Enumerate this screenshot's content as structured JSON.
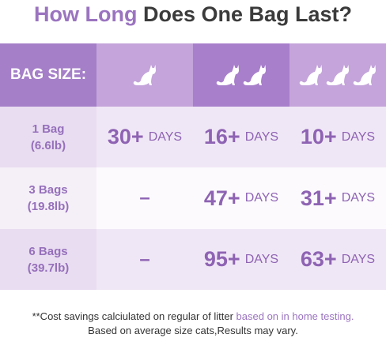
{
  "header": {
    "title_accent": "How Long",
    "title_rest": "Does One Bag Last?"
  },
  "table": {
    "header_label": "BAG SIZE:",
    "rows": [
      {
        "label": [
          "1 Bag",
          "(6.6lb)"
        ],
        "cells": [
          {
            "number": "30+",
            "unit": "DAYS"
          },
          {
            "number": "16+",
            "unit": "DAYS"
          },
          {
            "number": "10+",
            "unit": "DAYS"
          }
        ]
      },
      {
        "label": [
          "3 Bags",
          "(19.8lb)"
        ],
        "cells": [
          {
            "dash": "–"
          },
          {
            "number": "47+",
            "unit": "DAYS"
          },
          {
            "number": "31+",
            "unit": "DAYS"
          }
        ]
      },
      {
        "label": [
          "6 Bags",
          "(39.7lb)"
        ],
        "cells": [
          {
            "dash": "–"
          },
          {
            "number": "95+",
            "unit": "DAYS"
          },
          {
            "number": "63+",
            "unit": "DAYS"
          }
        ]
      }
    ]
  },
  "footnote": {
    "line1": "**Cost savings calciulated on regular of litter",
    "line1_accent": "based on in home testing.",
    "line2": "Based on average size cats,Results may vary."
  }
}
